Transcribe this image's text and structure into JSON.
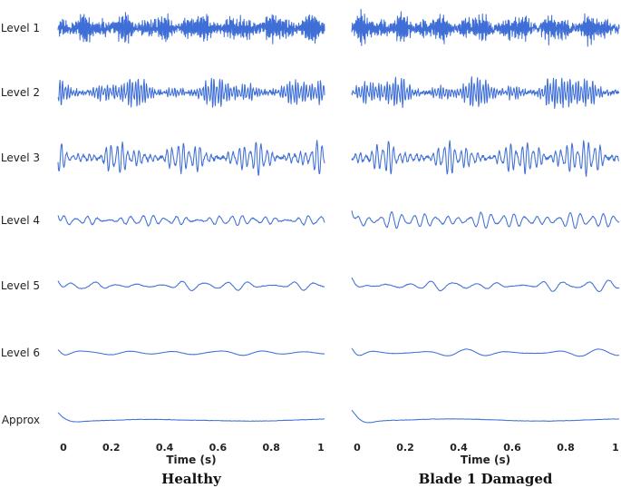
{
  "chart_data": {
    "type": "line",
    "description_kind": "wavelet decomposition signals",
    "levels": [
      "Level 1",
      "Level 2",
      "Level 3",
      "Level 4",
      "Level 5",
      "Level 6",
      "Approx"
    ],
    "xlabel": "Time (s)",
    "xlim": [
      0,
      1
    ],
    "xticks": [
      "0",
      "0.2",
      "0.4",
      "0.6",
      "0.8",
      "1"
    ],
    "panels": [
      {
        "title": "Healthy",
        "damaged": false
      },
      {
        "title": "Blade 1 Damaged",
        "damaged": true
      }
    ],
    "series_color": "#3f6fd6"
  }
}
